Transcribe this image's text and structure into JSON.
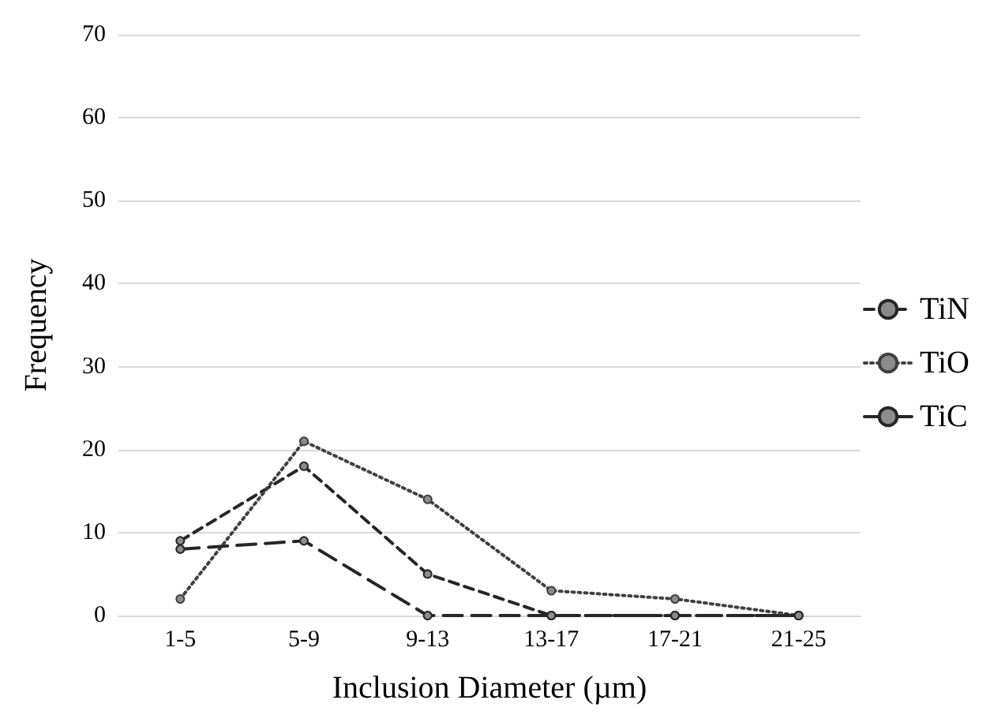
{
  "chart_data": {
    "type": "line",
    "xlabel": "Inclusion Diameter (µm)",
    "ylabel": "Frequency",
    "categories": [
      "1-5",
      "5-9",
      "9-13",
      "13-17",
      "17-21",
      "21-25"
    ],
    "series": [
      {
        "name": "TiN",
        "color": "#262626",
        "line_style": "dashed",
        "values": [
          9,
          18,
          5,
          0,
          0,
          0
        ]
      },
      {
        "name": "TiO",
        "color": "#404040",
        "line_style": "dotted",
        "values": [
          2,
          21,
          14,
          3,
          2,
          0
        ]
      },
      {
        "name": "TiC",
        "color": "#262626",
        "line_style": "longdash",
        "values": [
          8,
          9,
          0,
          0,
          0,
          0
        ]
      }
    ],
    "ylim": [
      0,
      70
    ],
    "yticks": [
      0,
      10,
      20,
      30,
      40,
      50,
      60,
      70
    ],
    "grid": "y",
    "legend": "right",
    "marker": "circle"
  }
}
